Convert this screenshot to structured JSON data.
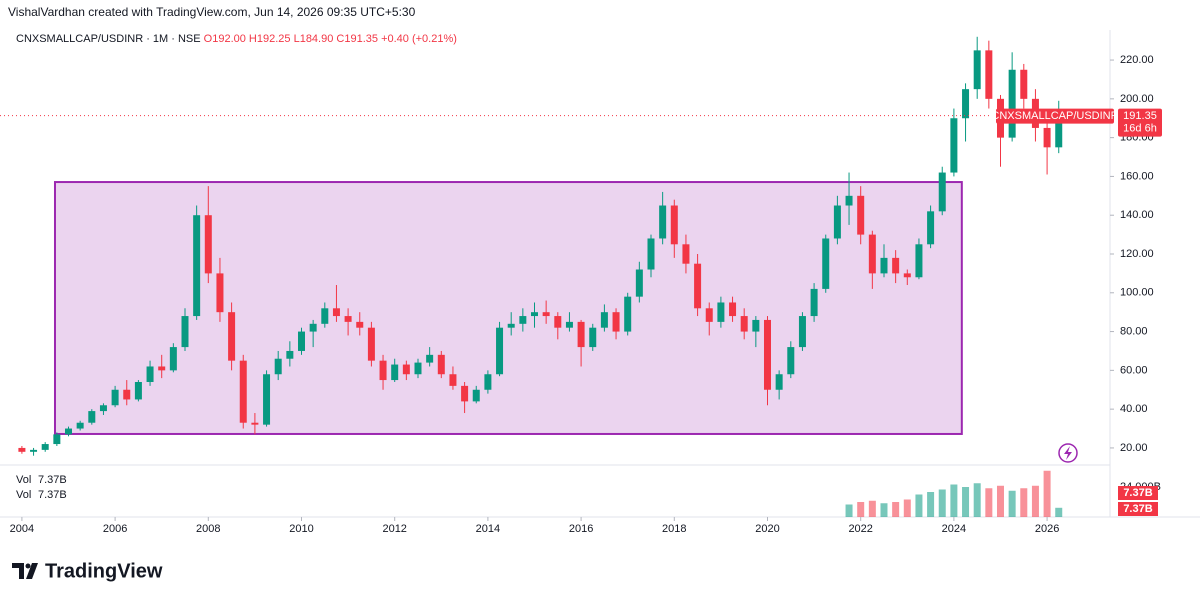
{
  "header": {
    "credit": "VishalVardhan created with TradingView.com, Jun 14, 2026 09:35 UTC+5:30"
  },
  "legend": {
    "symbol": "CNXSMALLCAP/USDINR · 1M · NSE",
    "open": "O192.00",
    "high": "H192.25",
    "low": "L184.90",
    "close": "C191.35",
    "change": "+0.40 (+0.21%)"
  },
  "logo": "TradingView",
  "chart_data": {
    "type": "candlestick",
    "up_color": "#089981",
    "down_color": "#f23645",
    "xlim": [
      2003.53,
      2027.35
    ],
    "xticks": [
      2004,
      2006,
      2008,
      2010,
      2012,
      2014,
      2016,
      2018,
      2020,
      2022,
      2024,
      2026
    ],
    "ylim": [
      11.2,
      235.5
    ],
    "yticks": [
      {
        "value": 20,
        "label": "20.00"
      },
      {
        "value": 40,
        "label": "40.00"
      },
      {
        "value": 60,
        "label": "60.00"
      },
      {
        "value": 80,
        "label": "80.00"
      },
      {
        "value": 100,
        "label": "100.00"
      },
      {
        "value": 120,
        "label": "120.00"
      },
      {
        "value": 140,
        "label": "140.00"
      },
      {
        "value": 160,
        "label": "160.00"
      },
      {
        "value": 180,
        "label": "180.00"
      },
      {
        "value": 200,
        "label": "200.00"
      },
      {
        "value": 220,
        "label": "220.00"
      }
    ],
    "grid": false,
    "candles": [
      [
        2004.0,
        20,
        21,
        17,
        18
      ],
      [
        2004.25,
        18,
        20,
        16,
        19
      ],
      [
        2004.5,
        19,
        23,
        18,
        22
      ],
      [
        2004.75,
        22,
        28,
        21,
        27
      ],
      [
        2005.0,
        27,
        31,
        26,
        30
      ],
      [
        2005.25,
        30,
        34,
        29,
        33
      ],
      [
        2005.5,
        33,
        40,
        32,
        39
      ],
      [
        2005.75,
        39,
        43,
        37,
        42
      ],
      [
        2006.0,
        42,
        52,
        41,
        50
      ],
      [
        2006.25,
        50,
        55,
        42,
        45
      ],
      [
        2006.5,
        45,
        55,
        44,
        54
      ],
      [
        2006.75,
        54,
        65,
        52,
        62
      ],
      [
        2007.0,
        62,
        68,
        56,
        60
      ],
      [
        2007.25,
        60,
        74,
        59,
        72
      ],
      [
        2007.5,
        72,
        92,
        70,
        88
      ],
      [
        2007.75,
        88,
        145,
        86,
        140
      ],
      [
        2008.0,
        140,
        155,
        105,
        110
      ],
      [
        2008.25,
        110,
        118,
        85,
        90
      ],
      [
        2008.5,
        90,
        95,
        60,
        65
      ],
      [
        2008.75,
        65,
        68,
        30,
        33
      ],
      [
        2009.0,
        33,
        38,
        27,
        32
      ],
      [
        2009.25,
        32,
        60,
        31,
        58
      ],
      [
        2009.5,
        58,
        70,
        55,
        66
      ],
      [
        2009.75,
        66,
        75,
        62,
        70
      ],
      [
        2010.0,
        70,
        82,
        68,
        80
      ],
      [
        2010.25,
        80,
        86,
        72,
        84
      ],
      [
        2010.5,
        84,
        95,
        82,
        92
      ],
      [
        2010.75,
        92,
        104,
        85,
        88
      ],
      [
        2011.0,
        88,
        92,
        78,
        85
      ],
      [
        2011.25,
        85,
        90,
        78,
        82
      ],
      [
        2011.5,
        82,
        85,
        62,
        65
      ],
      [
        2011.75,
        65,
        68,
        50,
        55
      ],
      [
        2012.0,
        55,
        66,
        54,
        63
      ],
      [
        2012.25,
        63,
        65,
        55,
        58
      ],
      [
        2012.5,
        58,
        66,
        56,
        64
      ],
      [
        2012.75,
        64,
        72,
        62,
        68
      ],
      [
        2013.0,
        68,
        70,
        56,
        58
      ],
      [
        2013.25,
        58,
        62,
        50,
        52
      ],
      [
        2013.5,
        52,
        54,
        38,
        44
      ],
      [
        2013.75,
        44,
        52,
        43,
        50
      ],
      [
        2014.0,
        50,
        60,
        48,
        58
      ],
      [
        2014.25,
        58,
        85,
        57,
        82
      ],
      [
        2014.5,
        82,
        90,
        78,
        84
      ],
      [
        2014.75,
        84,
        92,
        80,
        88
      ],
      [
        2015.0,
        88,
        95,
        82,
        90
      ],
      [
        2015.25,
        90,
        96,
        84,
        88
      ],
      [
        2015.5,
        88,
        90,
        76,
        82
      ],
      [
        2015.75,
        82,
        90,
        80,
        85
      ],
      [
        2016.0,
        85,
        86,
        62,
        72
      ],
      [
        2016.25,
        72,
        84,
        70,
        82
      ],
      [
        2016.5,
        82,
        94,
        80,
        90
      ],
      [
        2016.75,
        90,
        92,
        76,
        80
      ],
      [
        2017.0,
        80,
        100,
        78,
        98
      ],
      [
        2017.25,
        98,
        116,
        95,
        112
      ],
      [
        2017.5,
        112,
        130,
        108,
        128
      ],
      [
        2017.75,
        128,
        152,
        125,
        145
      ],
      [
        2018.0,
        145,
        148,
        118,
        125
      ],
      [
        2018.25,
        125,
        130,
        110,
        115
      ],
      [
        2018.5,
        115,
        120,
        88,
        92
      ],
      [
        2018.75,
        92,
        95,
        78,
        85
      ],
      [
        2019.0,
        85,
        98,
        82,
        95
      ],
      [
        2019.25,
        95,
        98,
        85,
        88
      ],
      [
        2019.5,
        88,
        92,
        76,
        80
      ],
      [
        2019.75,
        80,
        88,
        72,
        86
      ],
      [
        2020.0,
        86,
        88,
        42,
        50
      ],
      [
        2020.25,
        50,
        60,
        45,
        58
      ],
      [
        2020.5,
        58,
        75,
        56,
        72
      ],
      [
        2020.75,
        72,
        90,
        70,
        88
      ],
      [
        2021.0,
        88,
        105,
        85,
        102
      ],
      [
        2021.25,
        102,
        130,
        100,
        128
      ],
      [
        2021.5,
        128,
        150,
        125,
        145
      ],
      [
        2021.75,
        145,
        162,
        135,
        150
      ],
      [
        2022.0,
        150,
        155,
        125,
        130
      ],
      [
        2022.25,
        130,
        132,
        102,
        110
      ],
      [
        2022.5,
        110,
        125,
        108,
        118
      ],
      [
        2022.75,
        118,
        122,
        105,
        110
      ],
      [
        2023.0,
        110,
        112,
        104,
        108
      ],
      [
        2023.25,
        108,
        128,
        107,
        125
      ],
      [
        2023.5,
        125,
        145,
        123,
        142
      ],
      [
        2023.75,
        142,
        165,
        140,
        162
      ],
      [
        2024.0,
        162,
        195,
        160,
        190
      ],
      [
        2024.25,
        190,
        208,
        178,
        205
      ],
      [
        2024.5,
        205,
        232,
        200,
        225
      ],
      [
        2024.75,
        225,
        230,
        195,
        200
      ],
      [
        2025.0,
        200,
        202,
        165,
        180
      ],
      [
        2025.25,
        180,
        224,
        178,
        215
      ],
      [
        2025.5,
        215,
        218,
        195,
        200
      ],
      [
        2025.75,
        200,
        205,
        178,
        185
      ],
      [
        2026.0,
        185,
        190,
        161,
        175
      ],
      [
        2026.25,
        175,
        199,
        172,
        191.35
      ]
    ],
    "rectangle": {
      "x": [
        2004.71,
        2024.17
      ],
      "y": [
        27.2,
        157.1
      ],
      "color": "#9c27b0"
    },
    "last_price": {
      "value": 191.35,
      "label": "191.35",
      "countdown": "16d 6h",
      "tag": "CNXSMALLCAP/USDINR"
    },
    "volume": [
      [
        2021.75,
        10
      ],
      [
        2022.0,
        12
      ],
      [
        2022.25,
        13
      ],
      [
        2022.5,
        11
      ],
      [
        2022.75,
        12
      ],
      [
        2023.0,
        14
      ],
      [
        2023.25,
        18
      ],
      [
        2023.5,
        20
      ],
      [
        2023.75,
        22
      ],
      [
        2024.0,
        26
      ],
      [
        2024.25,
        24
      ],
      [
        2024.5,
        27
      ],
      [
        2024.75,
        23
      ],
      [
        2025.0,
        25
      ],
      [
        2025.25,
        21
      ],
      [
        2025.5,
        23
      ],
      [
        2025.75,
        25
      ],
      [
        2026.0,
        37
      ],
      [
        2026.25,
        7.37
      ]
    ],
    "vlim": [
      0,
      39.2
    ],
    "vticks": [
      {
        "value": 24,
        "label": "24.000B"
      }
    ],
    "vol_label": "Vol",
    "vol_value": "7.37B"
  }
}
